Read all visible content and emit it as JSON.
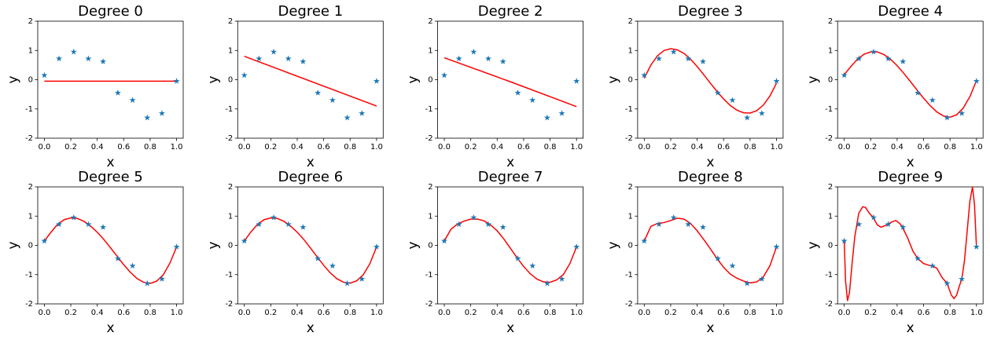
{
  "chart_data": [
    {
      "type": "line",
      "title": "Degree 0",
      "xlabel": "x",
      "ylabel": "y",
      "xlim": [
        -0.05,
        1.05
      ],
      "ylim": [
        -2,
        2
      ],
      "xticks": [
        {
          "value": 0,
          "label": "0.0"
        },
        0.2,
        0.4,
        0.6,
        0.8,
        {
          "value": 1,
          "label": "1.0"
        }
      ],
      "yticks": [
        -2,
        -1,
        0,
        1,
        2
      ],
      "series": [
        {
          "x": [
            0,
            0.111,
            0.222,
            0.333,
            0.444,
            0.556,
            0.667,
            0.778,
            0.889,
            1
          ],
          "values": [
            0.15,
            0.72,
            0.95,
            0.72,
            0.62,
            -0.45,
            -0.7,
            -1.3,
            -1.15,
            -0.05
          ],
          "color": "#1f77b4",
          "marker": "star"
        },
        {
          "x": [
            0,
            1
          ],
          "values": [
            -0.05,
            -0.05
          ],
          "color": "#ff0000"
        }
      ]
    },
    {
      "type": "line",
      "title": "Degree 1",
      "xlabel": "x",
      "ylabel": "y",
      "xlim": [
        -0.05,
        1.05
      ],
      "ylim": [
        -2,
        2
      ],
      "xticks": [
        {
          "value": 0,
          "label": "0.0"
        },
        0.2,
        0.4,
        0.6,
        0.8,
        {
          "value": 1,
          "label": "1.0"
        }
      ],
      "yticks": [
        -2,
        -1,
        0,
        1,
        2
      ],
      "series": [
        {
          "x": [
            0,
            0.111,
            0.222,
            0.333,
            0.444,
            0.556,
            0.667,
            0.778,
            0.889,
            1
          ],
          "values": [
            0.15,
            0.72,
            0.95,
            0.72,
            0.62,
            -0.45,
            -0.7,
            -1.3,
            -1.15,
            -0.05
          ],
          "color": "#1f77b4",
          "marker": "star"
        },
        {
          "x": [
            0,
            1
          ],
          "values": [
            0.8,
            -0.9
          ],
          "color": "#ff0000"
        }
      ]
    },
    {
      "type": "line",
      "title": "Degree 2",
      "xlabel": "x",
      "ylabel": "y",
      "xlim": [
        -0.05,
        1.05
      ],
      "ylim": [
        -2,
        2
      ],
      "xticks": [
        {
          "value": 0,
          "label": "0.0"
        },
        0.2,
        0.4,
        0.6,
        0.8,
        {
          "value": 1,
          "label": "1.0"
        }
      ],
      "yticks": [
        -2,
        -1,
        0,
        1,
        2
      ],
      "series": [
        {
          "x": [
            0,
            0.111,
            0.222,
            0.333,
            0.444,
            0.556,
            0.667,
            0.778,
            0.889,
            1
          ],
          "values": [
            0.15,
            0.72,
            0.95,
            0.72,
            0.62,
            -0.45,
            -0.7,
            -1.3,
            -1.15,
            -0.05
          ],
          "color": "#1f77b4",
          "marker": "star"
        },
        {
          "x": [
            0,
            0.5,
            1
          ],
          "values": [
            0.75,
            -0.07,
            -0.92
          ],
          "color": "#ff0000"
        }
      ]
    },
    {
      "type": "line",
      "title": "Degree 3",
      "xlabel": "x",
      "ylabel": "y",
      "xlim": [
        -0.05,
        1.05
      ],
      "ylim": [
        -2,
        2
      ],
      "xticks": [
        {
          "value": 0,
          "label": "0.0"
        },
        0.2,
        0.4,
        0.6,
        0.8,
        {
          "value": 1,
          "label": "1.0"
        }
      ],
      "yticks": [
        -2,
        -1,
        0,
        1,
        2
      ],
      "series": [
        {
          "x": [
            0,
            0.111,
            0.222,
            0.333,
            0.444,
            0.556,
            0.667,
            0.778,
            0.889,
            1
          ],
          "values": [
            0.15,
            0.72,
            0.95,
            0.72,
            0.62,
            -0.45,
            -0.7,
            -1.3,
            -1.15,
            -0.05
          ],
          "color": "#1f77b4",
          "marker": "star"
        },
        {
          "x": [
            0,
            0.05,
            0.1,
            0.15,
            0.2,
            0.25,
            0.3,
            0.35,
            0.4,
            0.45,
            0.5,
            0.55,
            0.6,
            0.65,
            0.7,
            0.75,
            0.8,
            0.85,
            0.9,
            0.95,
            1
          ],
          "values": [
            0.05,
            0.5,
            0.82,
            1.0,
            1.06,
            1.02,
            0.9,
            0.7,
            0.45,
            0.17,
            -0.12,
            -0.4,
            -0.66,
            -0.88,
            -1.04,
            -1.13,
            -1.14,
            -1.06,
            -0.87,
            -0.56,
            -0.12
          ],
          "color": "#ff0000"
        }
      ]
    },
    {
      "type": "line",
      "title": "Degree 4",
      "xlabel": "x",
      "ylabel": "y",
      "xlim": [
        -0.05,
        1.05
      ],
      "ylim": [
        -2,
        2
      ],
      "xticks": [
        {
          "value": 0,
          "label": "0.0"
        },
        0.2,
        0.4,
        0.6,
        0.8,
        {
          "value": 1,
          "label": "1.0"
        }
      ],
      "yticks": [
        -2,
        -1,
        0,
        1,
        2
      ],
      "series": [
        {
          "x": [
            0,
            0.111,
            0.222,
            0.333,
            0.444,
            0.556,
            0.667,
            0.778,
            0.889,
            1
          ],
          "values": [
            0.15,
            0.72,
            0.95,
            0.72,
            0.62,
            -0.45,
            -0.7,
            -1.3,
            -1.15,
            -0.05
          ],
          "color": "#1f77b4",
          "marker": "star"
        },
        {
          "x": [
            0,
            0.05,
            0.1,
            0.15,
            0.2,
            0.25,
            0.3,
            0.35,
            0.4,
            0.45,
            0.5,
            0.55,
            0.6,
            0.65,
            0.7,
            0.75,
            0.8,
            0.85,
            0.9,
            0.95,
            1
          ],
          "values": [
            0.17,
            0.45,
            0.7,
            0.87,
            0.95,
            0.95,
            0.86,
            0.7,
            0.48,
            0.22,
            -0.06,
            -0.35,
            -0.63,
            -0.89,
            -1.1,
            -1.24,
            -1.28,
            -1.2,
            -0.97,
            -0.58,
            -0.03
          ],
          "color": "#ff0000"
        }
      ]
    },
    {
      "type": "line",
      "title": "Degree 5",
      "xlabel": "x",
      "ylabel": "y",
      "xlim": [
        -0.05,
        1.05
      ],
      "ylim": [
        -2,
        2
      ],
      "xticks": [
        {
          "value": 0,
          "label": "0.0"
        },
        0.2,
        0.4,
        0.6,
        0.8,
        {
          "value": 1,
          "label": "1.0"
        }
      ],
      "yticks": [
        -2,
        -1,
        0,
        1,
        2
      ],
      "series": [
        {
          "x": [
            0,
            0.111,
            0.222,
            0.333,
            0.444,
            0.556,
            0.667,
            0.778,
            0.889,
            1
          ],
          "values": [
            0.15,
            0.72,
            0.95,
            0.72,
            0.62,
            -0.45,
            -0.7,
            -1.3,
            -1.15,
            -0.05
          ],
          "color": "#1f77b4",
          "marker": "star"
        },
        {
          "x": [
            0,
            0.05,
            0.1,
            0.15,
            0.2,
            0.25,
            0.3,
            0.35,
            0.4,
            0.45,
            0.5,
            0.55,
            0.6,
            0.65,
            0.7,
            0.75,
            0.8,
            0.85,
            0.9,
            0.95,
            1
          ],
          "values": [
            0.15,
            0.45,
            0.72,
            0.88,
            0.94,
            0.92,
            0.82,
            0.66,
            0.45,
            0.2,
            -0.08,
            -0.37,
            -0.66,
            -0.92,
            -1.13,
            -1.26,
            -1.3,
            -1.22,
            -1.0,
            -0.6,
            -0.05
          ],
          "color": "#ff0000"
        }
      ]
    },
    {
      "type": "line",
      "title": "Degree 6",
      "xlabel": "x",
      "ylabel": "y",
      "xlim": [
        -0.05,
        1.05
      ],
      "ylim": [
        -2,
        2
      ],
      "xticks": [
        {
          "value": 0,
          "label": "0.0"
        },
        0.2,
        0.4,
        0.6,
        0.8,
        {
          "value": 1,
          "label": "1.0"
        }
      ],
      "yticks": [
        -2,
        -1,
        0,
        1,
        2
      ],
      "series": [
        {
          "x": [
            0,
            0.111,
            0.222,
            0.333,
            0.444,
            0.556,
            0.667,
            0.778,
            0.889,
            1
          ],
          "values": [
            0.15,
            0.72,
            0.95,
            0.72,
            0.62,
            -0.45,
            -0.7,
            -1.3,
            -1.15,
            -0.05
          ],
          "color": "#1f77b4",
          "marker": "star"
        },
        {
          "x": [
            0,
            0.05,
            0.1,
            0.15,
            0.2,
            0.25,
            0.3,
            0.35,
            0.4,
            0.45,
            0.5,
            0.55,
            0.6,
            0.65,
            0.7,
            0.75,
            0.8,
            0.85,
            0.9,
            0.95,
            1
          ],
          "values": [
            0.15,
            0.46,
            0.72,
            0.88,
            0.94,
            0.92,
            0.82,
            0.66,
            0.45,
            0.2,
            -0.09,
            -0.39,
            -0.68,
            -0.94,
            -1.14,
            -1.26,
            -1.29,
            -1.21,
            -1.0,
            -0.62,
            -0.05
          ],
          "color": "#ff0000"
        }
      ]
    },
    {
      "type": "line",
      "title": "Degree 7",
      "xlabel": "x",
      "ylabel": "y",
      "xlim": [
        -0.05,
        1.05
      ],
      "ylim": [
        -2,
        2
      ],
      "xticks": [
        {
          "value": 0,
          "label": "0.0"
        },
        0.2,
        0.4,
        0.6,
        0.8,
        {
          "value": 1,
          "label": "1.0"
        }
      ],
      "yticks": [
        -2,
        -1,
        0,
        1,
        2
      ],
      "series": [
        {
          "x": [
            0,
            0.111,
            0.222,
            0.333,
            0.444,
            0.556,
            0.667,
            0.778,
            0.889,
            1
          ],
          "values": [
            0.15,
            0.72,
            0.95,
            0.72,
            0.62,
            -0.45,
            -0.7,
            -1.3,
            -1.15,
            -0.05
          ],
          "color": "#1f77b4",
          "marker": "star"
        },
        {
          "x": [
            0,
            0.05,
            0.1,
            0.15,
            0.2,
            0.25,
            0.3,
            0.35,
            0.4,
            0.45,
            0.5,
            0.55,
            0.6,
            0.65,
            0.7,
            0.75,
            0.8,
            0.85,
            0.9,
            0.95,
            1
          ],
          "values": [
            0.15,
            0.55,
            0.73,
            0.83,
            0.9,
            0.9,
            0.84,
            0.7,
            0.5,
            0.22,
            -0.1,
            -0.42,
            -0.72,
            -0.97,
            -1.15,
            -1.25,
            -1.26,
            -1.18,
            -1.0,
            -0.62,
            -0.05
          ],
          "color": "#ff0000"
        }
      ]
    },
    {
      "type": "line",
      "title": "Degree 8",
      "xlabel": "x",
      "ylabel": "y",
      "xlim": [
        -0.05,
        1.05
      ],
      "ylim": [
        -2,
        2
      ],
      "xticks": [
        {
          "value": 0,
          "label": "0.0"
        },
        0.2,
        0.4,
        0.6,
        0.8,
        {
          "value": 1,
          "label": "1.0"
        }
      ],
      "yticks": [
        -2,
        -1,
        0,
        1,
        2
      ],
      "series": [
        {
          "x": [
            0,
            0.111,
            0.222,
            0.333,
            0.444,
            0.556,
            0.667,
            0.778,
            0.889,
            1
          ],
          "values": [
            0.15,
            0.72,
            0.95,
            0.72,
            0.62,
            -0.45,
            -0.7,
            -1.3,
            -1.15,
            -0.05
          ],
          "color": "#1f77b4",
          "marker": "star"
        },
        {
          "x": [
            0,
            0.05,
            0.1,
            0.15,
            0.2,
            0.25,
            0.3,
            0.35,
            0.4,
            0.45,
            0.5,
            0.55,
            0.6,
            0.65,
            0.7,
            0.75,
            0.8,
            0.85,
            0.9,
            0.95,
            1
          ],
          "values": [
            0.15,
            0.65,
            0.75,
            0.78,
            0.85,
            0.93,
            0.9,
            0.75,
            0.5,
            0.2,
            -0.12,
            -0.45,
            -0.75,
            -0.98,
            -1.12,
            -1.22,
            -1.28,
            -1.25,
            -1.08,
            -0.7,
            -0.05
          ],
          "color": "#ff0000"
        }
      ]
    },
    {
      "type": "line",
      "title": "Degree 9",
      "xlabel": "x",
      "ylabel": "y",
      "xlim": [
        -0.05,
        1.05
      ],
      "ylim": [
        -2,
        2
      ],
      "xticks": [
        {
          "value": 0,
          "label": "0.0"
        },
        0.2,
        0.4,
        0.6,
        0.8,
        {
          "value": 1,
          "label": "1.0"
        }
      ],
      "yticks": [
        -2,
        -1,
        0,
        1,
        2
      ],
      "series": [
        {
          "x": [
            0,
            0.111,
            0.222,
            0.333,
            0.444,
            0.556,
            0.667,
            0.778,
            0.889,
            1
          ],
          "values": [
            0.15,
            0.72,
            0.95,
            0.72,
            0.62,
            -0.45,
            -0.7,
            -1.3,
            -1.15,
            -0.05
          ],
          "color": "#1f77b4",
          "marker": "star"
        },
        {
          "x": [
            0,
            0.01,
            0.025,
            0.04,
            0.06,
            0.08,
            0.11,
            0.14,
            0.16,
            0.19,
            0.22,
            0.25,
            0.28,
            0.31,
            0.33,
            0.36,
            0.39,
            0.42,
            0.44,
            0.48,
            0.52,
            0.556,
            0.6,
            0.64,
            0.667,
            0.7,
            0.74,
            0.778,
            0.81,
            0.83,
            0.85,
            0.87,
            0.889,
            0.91,
            0.93,
            0.95,
            0.97,
            0.985,
            1
          ],
          "values": [
            0.15,
            -1.2,
            -1.9,
            -1.6,
            -0.6,
            0.3,
            1.1,
            1.32,
            1.3,
            1.1,
            0.95,
            0.7,
            0.62,
            0.68,
            0.72,
            0.8,
            0.85,
            0.75,
            0.62,
            0.25,
            -0.2,
            -0.45,
            -0.62,
            -0.68,
            -0.7,
            -0.78,
            -1.1,
            -1.3,
            -1.7,
            -1.82,
            -1.7,
            -1.4,
            -1.15,
            -0.5,
            0.5,
            1.5,
            2.0,
            1.4,
            -0.05
          ],
          "color": "#ff0000"
        }
      ]
    }
  ]
}
